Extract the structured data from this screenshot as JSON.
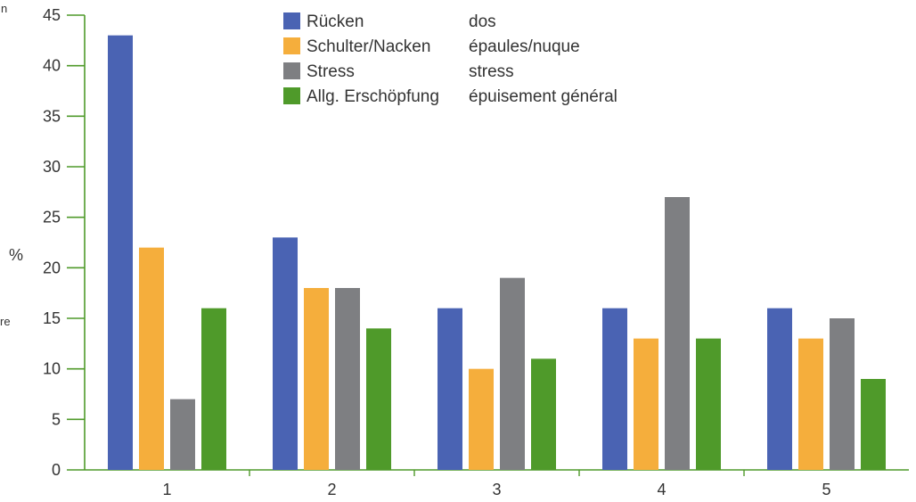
{
  "chart_data": {
    "type": "bar",
    "categories": [
      "1",
      "2",
      "3",
      "4",
      "5"
    ],
    "series": [
      {
        "name": "Rücken",
        "name_fr": "dos",
        "color": "#4a63b3",
        "values": [
          43,
          23,
          16,
          16,
          16
        ]
      },
      {
        "name": "Schulter/Nacken",
        "name_fr": "épaules/nuque",
        "color": "#f5ae3c",
        "values": [
          22,
          18,
          10,
          13,
          13
        ]
      },
      {
        "name": "Stress",
        "name_fr": "stress",
        "color": "#7e7f82",
        "values": [
          7,
          18,
          19,
          27,
          15
        ]
      },
      {
        "name": "Allg. Erschöpfung",
        "name_fr": "épuisement général",
        "color": "#4f9a2a",
        "values": [
          16,
          14,
          11,
          13,
          9
        ]
      }
    ],
    "ylabel": "%",
    "ylim": [
      0,
      45
    ],
    "yticks": [
      0,
      5,
      10,
      15,
      20,
      25,
      30,
      35,
      40,
      45
    ],
    "grid": false,
    "legend_position": "top-center",
    "axis_color": "#4f9a2a"
  },
  "left_edge_fragments": [
    "n",
    "re"
  ]
}
